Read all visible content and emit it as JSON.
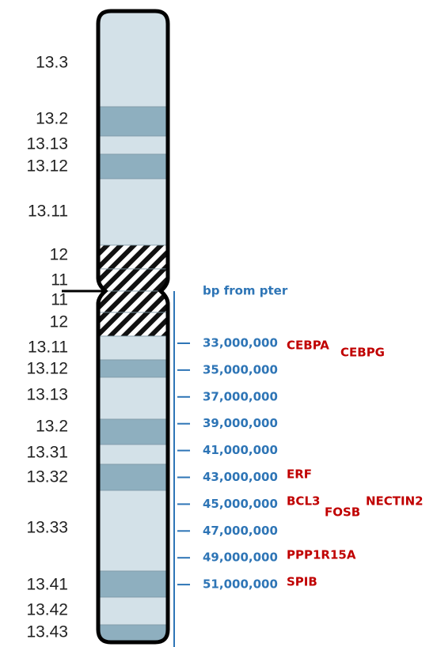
{
  "bands": [
    "13.3",
    "13.2",
    "13.13",
    "13.12",
    "13.11",
    "12",
    "11",
    "11",
    "12",
    "13.11",
    "13.12",
    "13.13",
    "13.2",
    "13.31",
    "13.32",
    "13.33",
    "13.41",
    "13.42",
    "13.43"
  ],
  "scale": {
    "title": "bp from pter",
    "ticks": [
      "33,000,000",
      "35,000,000",
      "37,000,000",
      "39,000,000",
      "41,000,000",
      "43,000,000",
      "45,000,000",
      "47,000,000",
      "49,000,000",
      "51,000,000"
    ]
  },
  "genes": [
    "CEBPA",
    "CEBPG",
    "ERF",
    "BCL3",
    "FOSB",
    "NECTIN2",
    "PPP1R15A",
    "SPIB"
  ]
}
